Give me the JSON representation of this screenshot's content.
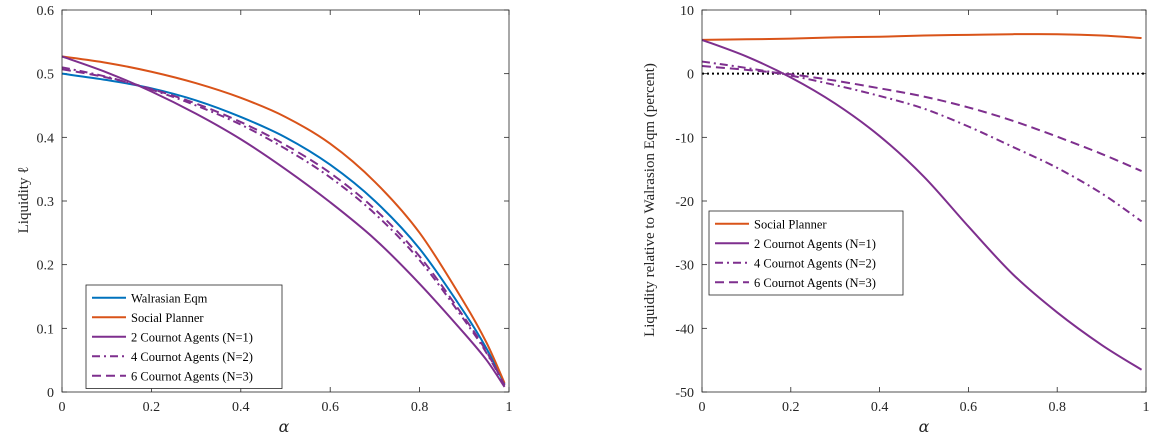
{
  "colors": {
    "walrasian": "#0072BD",
    "planner": "#D95319",
    "cournot": "#7E2F8E",
    "reference": "#000000",
    "axis": "#262626"
  },
  "chart_data": [
    {
      "type": "line",
      "xlabel": "α",
      "ylabel": "Liquidity ℓ",
      "xlim": [
        0,
        1
      ],
      "ylim": [
        0,
        0.6
      ],
      "xticks": [
        "0",
        "0.2",
        "0.4",
        "0.6",
        "0.8",
        "1"
      ],
      "yticks": [
        "0",
        "0.1",
        "0.2",
        "0.3",
        "0.4",
        "0.5",
        "0.6"
      ],
      "legend_position": "bottom-left",
      "x": [
        0,
        0.1,
        0.2,
        0.3,
        0.4,
        0.5,
        0.6,
        0.7,
        0.8,
        0.9,
        0.95,
        0.99
      ],
      "series": [
        {
          "name": "Walrasian Eqm",
          "style": "solid",
          "color_key": "walrasian",
          "values": [
            0.5,
            0.49,
            0.477,
            0.458,
            0.432,
            0.4,
            0.357,
            0.3,
            0.225,
            0.125,
            0.068,
            0.012
          ]
        },
        {
          "name": "Social Planner",
          "style": "solid",
          "color_key": "planner",
          "values": [
            0.527,
            0.517,
            0.503,
            0.485,
            0.462,
            0.432,
            0.39,
            0.33,
            0.25,
            0.14,
            0.077,
            0.014
          ]
        },
        {
          "name": "2 Cournot Agents (N=1)",
          "style": "solid",
          "color_key": "cournot",
          "values": [
            0.527,
            0.502,
            0.472,
            0.437,
            0.397,
            0.35,
            0.298,
            0.24,
            0.17,
            0.092,
            0.05,
            0.008
          ]
        },
        {
          "name": "4 Cournot Agents (N=2)",
          "style": "dashdot",
          "color_key": "cournot",
          "values": [
            0.51,
            0.495,
            0.475,
            0.45,
            0.42,
            0.382,
            0.337,
            0.28,
            0.207,
            0.113,
            0.061,
            0.01
          ]
        },
        {
          "name": "6 Cournot Agents (N=3)",
          "style": "dashed",
          "color_key": "cournot",
          "values": [
            0.507,
            0.494,
            0.476,
            0.453,
            0.424,
            0.388,
            0.344,
            0.287,
            0.213,
            0.117,
            0.063,
            0.011
          ]
        }
      ]
    },
    {
      "type": "line",
      "xlabel": "α",
      "ylabel": "Liquidity relative to Walrasion Eqm (percent)",
      "xlim": [
        0,
        1
      ],
      "ylim": [
        -50,
        10
      ],
      "xticks": [
        "0",
        "0.2",
        "0.4",
        "0.6",
        "0.8",
        "1"
      ],
      "yticks": [
        "-50",
        "-40",
        "-30",
        "-20",
        "-10",
        "0",
        "10"
      ],
      "legend_position": "middle-left",
      "reference_line": {
        "y": 0,
        "style": "dotted",
        "color_key": "reference"
      },
      "x": [
        0,
        0.1,
        0.2,
        0.3,
        0.4,
        0.5,
        0.6,
        0.7,
        0.8,
        0.9,
        0.99
      ],
      "series": [
        {
          "name": "Social Planner",
          "style": "solid",
          "color_key": "planner",
          "values": [
            5.3,
            5.4,
            5.5,
            5.7,
            5.8,
            6.0,
            6.1,
            6.2,
            6.2,
            6.0,
            5.6
          ]
        },
        {
          "name": "2 Cournot Agents (N=1)",
          "style": "solid",
          "color_key": "cournot",
          "values": [
            5.3,
            2.7,
            -0.6,
            -4.7,
            -9.8,
            -16.2,
            -24.0,
            -31.5,
            -37.5,
            -42.6,
            -46.5
          ]
        },
        {
          "name": "4 Cournot Agents (N=2)",
          "style": "dashdot",
          "color_key": "cournot",
          "values": [
            1.9,
            0.9,
            -0.3,
            -1.8,
            -3.5,
            -5.5,
            -8.3,
            -11.5,
            -14.8,
            -18.8,
            -23.2
          ]
        },
        {
          "name": "6 Cournot Agents (N=3)",
          "style": "dashed",
          "color_key": "cournot",
          "values": [
            1.2,
            0.6,
            -0.1,
            -1.1,
            -2.3,
            -3.6,
            -5.3,
            -7.4,
            -9.9,
            -12.6,
            -15.3
          ]
        }
      ]
    }
  ]
}
